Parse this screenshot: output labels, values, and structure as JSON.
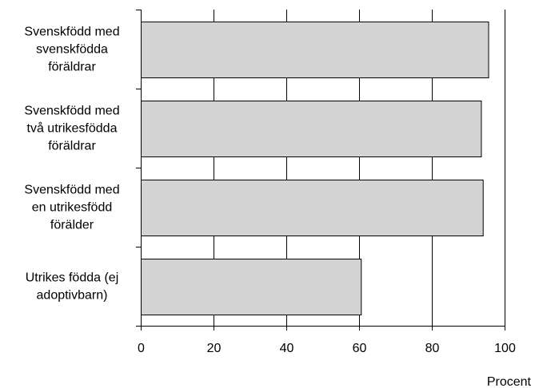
{
  "chart_data": {
    "type": "bar",
    "orientation": "horizontal",
    "categories": [
      [
        "Svenskfödd med",
        "svenskfödda",
        "föräldrar"
      ],
      [
        "Svenskfödd med",
        "två utrikesfödda",
        "föräldrar"
      ],
      [
        "Svenskfödd med",
        "en utrikesfödd",
        "förälder"
      ],
      [
        "Utrikes födda (ej",
        "adoptivbarn)"
      ]
    ],
    "values": [
      95.5,
      93.5,
      94,
      60.5
    ],
    "xlabel": "Procent",
    "xlim": [
      0,
      100
    ],
    "xticks": [
      "0",
      "20",
      "40",
      "60",
      "80",
      "100"
    ],
    "grid": "vertical",
    "legend": "none",
    "bar_color": "#d3d3d3"
  }
}
